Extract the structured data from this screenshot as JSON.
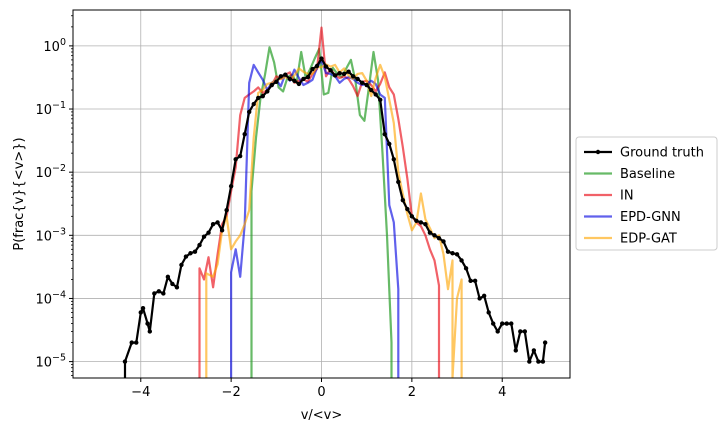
{
  "chart_data": {
    "type": "line",
    "xlabel": "v/<v>",
    "ylabel": "P(frac{v}{<v>})",
    "xlim": [
      -5.5,
      5.5
    ],
    "ylim": [
      5.5e-06,
      3.7
    ],
    "yscale": "log",
    "grid": true,
    "legend_position": "right-outside",
    "x_ticks": [
      -4,
      -2,
      0,
      2,
      4
    ],
    "x_tick_labels": [
      "−4",
      "−2",
      "0",
      "2",
      "4"
    ],
    "y_ticks": [
      1e-05,
      0.0001,
      0.001,
      0.01,
      0.1,
      1
    ],
    "y_tick_labels": [
      {
        "base": "10",
        "exp": "−5"
      },
      {
        "base": "10",
        "exp": "−4"
      },
      {
        "base": "10",
        "exp": "−3"
      },
      {
        "base": "10",
        "exp": "−2"
      },
      {
        "base": "10",
        "exp": "−1"
      },
      {
        "base": "10",
        "exp": "0"
      }
    ],
    "series": [
      {
        "name": "Ground truth",
        "color": "#000000",
        "opacity": 1,
        "markers": true,
        "x": [
          -4.35,
          -4.35,
          -4.2,
          -4.1,
          -4.0,
          -3.95,
          -3.85,
          -3.8,
          -3.7,
          -3.6,
          -3.5,
          -3.4,
          -3.3,
          -3.2,
          -3.1,
          -3.0,
          -2.9,
          -2.8,
          -2.7,
          -2.6,
          -2.5,
          -2.4,
          -2.3,
          -2.2,
          -2.1,
          -2.0,
          -1.9,
          -1.8,
          -1.7,
          -1.6,
          -1.5,
          -1.4,
          -1.3,
          -1.2,
          -1.1,
          -1.0,
          -0.9,
          -0.8,
          -0.7,
          -0.6,
          -0.5,
          -0.4,
          -0.3,
          -0.2,
          -0.1,
          0.0,
          0.1,
          0.2,
          0.3,
          0.4,
          0.5,
          0.6,
          0.7,
          0.8,
          0.9,
          1.0,
          1.1,
          1.2,
          1.3,
          1.4,
          1.5,
          1.6,
          1.7,
          1.8,
          1.9,
          2.0,
          2.1,
          2.2,
          2.3,
          2.4,
          2.5,
          2.6,
          2.7,
          2.8,
          2.9,
          3.0,
          3.1,
          3.2,
          3.3,
          3.4,
          3.5,
          3.6,
          3.7,
          3.8,
          3.9,
          4.0,
          4.1,
          4.2,
          4.3,
          4.4,
          4.5,
          4.6,
          4.7,
          4.8,
          4.9,
          4.95
        ],
        "y": [
          5e-06,
          1e-05,
          2e-05,
          2e-05,
          6e-05,
          7e-05,
          4e-05,
          3e-05,
          0.00012,
          0.00013,
          0.00012,
          0.00022,
          0.00017,
          0.00015,
          0.00034,
          0.00046,
          0.00052,
          0.00055,
          0.0007,
          0.00095,
          0.0011,
          0.0015,
          0.0016,
          0.0012,
          0.0025,
          0.006,
          0.016,
          0.018,
          0.04,
          0.09,
          0.12,
          0.15,
          0.16,
          0.19,
          0.24,
          0.27,
          0.33,
          0.35,
          0.3,
          0.28,
          0.25,
          0.3,
          0.32,
          0.43,
          0.48,
          0.63,
          0.47,
          0.41,
          0.34,
          0.37,
          0.36,
          0.39,
          0.33,
          0.3,
          0.26,
          0.24,
          0.2,
          0.17,
          0.14,
          0.04,
          0.028,
          0.016,
          0.007,
          0.0036,
          0.0026,
          0.002,
          0.0017,
          0.0016,
          0.0015,
          0.0011,
          0.001,
          0.0009,
          0.0008,
          0.00055,
          0.00052,
          0.0005,
          0.0004,
          0.0003,
          0.00019,
          0.00019,
          0.0001,
          0.00011,
          6e-05,
          4e-05,
          3e-05,
          4e-05,
          4e-05,
          4e-05,
          1.5e-05,
          3e-05,
          3e-05,
          1e-05,
          1.5e-05,
          1e-05,
          1e-05,
          2e-05
        ]
      },
      {
        "name": "Baseline",
        "color": "#2ca02c",
        "opacity": 0.72,
        "markers": false,
        "x": [
          -1.55,
          -1.55,
          -1.45,
          -1.35,
          -1.25,
          -1.15,
          -1.05,
          -0.95,
          -0.85,
          -0.75,
          -0.65,
          -0.55,
          -0.45,
          -0.35,
          -0.25,
          -0.15,
          -0.05,
          0.05,
          0.15,
          0.25,
          0.35,
          0.45,
          0.55,
          0.65,
          0.75,
          0.85,
          0.95,
          1.05,
          1.15,
          1.25,
          1.35,
          1.45,
          1.55,
          1.55
        ],
        "y": [
          5e-06,
          0.005,
          0.035,
          0.15,
          0.35,
          0.95,
          0.55,
          0.22,
          0.19,
          0.32,
          0.35,
          0.26,
          0.8,
          0.31,
          0.43,
          0.63,
          0.9,
          0.17,
          0.18,
          0.45,
          0.36,
          0.32,
          0.44,
          0.6,
          0.28,
          0.08,
          0.065,
          0.22,
          0.8,
          0.29,
          0.02,
          0.001,
          2e-05,
          5e-06
        ]
      },
      {
        "name": "IN",
        "color": "#e8000b",
        "opacity": 0.62,
        "markers": false,
        "x": [
          -2.7,
          -2.7,
          -2.6,
          -2.5,
          -2.4,
          -2.3,
          -2.2,
          -2.1,
          -2.0,
          -1.9,
          -1.8,
          -1.7,
          -1.6,
          -1.5,
          -1.4,
          -1.3,
          -1.2,
          -1.1,
          -1.0,
          -0.9,
          -0.8,
          -0.7,
          -0.6,
          -0.5,
          -0.4,
          -0.3,
          -0.2,
          -0.1,
          0.0,
          0.1,
          0.2,
          0.3,
          0.4,
          0.5,
          0.6,
          0.7,
          0.8,
          0.9,
          1.0,
          1.1,
          1.2,
          1.3,
          1.4,
          1.5,
          1.6,
          1.7,
          1.8,
          1.9,
          2.0,
          2.1,
          2.2,
          2.3,
          2.4,
          2.5,
          2.6,
          2.6
        ],
        "y": [
          5e-06,
          0.0003,
          0.0002,
          0.00045,
          0.00015,
          0.0005,
          0.0015,
          0.002,
          0.005,
          0.012,
          0.08,
          0.15,
          0.17,
          0.19,
          0.22,
          0.18,
          0.2,
          0.24,
          0.33,
          0.3,
          0.35,
          0.38,
          0.26,
          0.28,
          0.3,
          0.27,
          0.36,
          0.43,
          1.95,
          0.33,
          0.43,
          0.34,
          0.31,
          0.33,
          0.3,
          0.23,
          0.16,
          0.27,
          0.28,
          0.24,
          0.19,
          0.25,
          0.38,
          0.22,
          0.17,
          0.07,
          0.025,
          0.008,
          0.002,
          0.0016,
          0.0014,
          0.001,
          0.0006,
          0.0004,
          0.00016,
          5e-06
        ]
      },
      {
        "name": "EPD-GNN",
        "color": "#0000e0",
        "opacity": 0.62,
        "markers": false,
        "x": [
          -2.0,
          -2.0,
          -1.9,
          -1.8,
          -1.7,
          -1.6,
          -1.5,
          -1.4,
          -1.3,
          -1.2,
          -1.1,
          -1.0,
          -0.9,
          -0.8,
          -0.7,
          -0.6,
          -0.5,
          -0.4,
          -0.3,
          -0.2,
          -0.1,
          0.0,
          0.1,
          0.2,
          0.3,
          0.4,
          0.5,
          0.6,
          0.7,
          0.8,
          0.9,
          1.0,
          1.1,
          1.2,
          1.3,
          1.4,
          1.5,
          1.6,
          1.7,
          1.7
        ],
        "y": [
          5e-06,
          0.00026,
          0.0006,
          0.00022,
          0.0015,
          0.26,
          0.5,
          0.38,
          0.29,
          0.2,
          0.26,
          0.29,
          0.23,
          0.36,
          0.28,
          0.42,
          0.31,
          0.24,
          0.26,
          0.29,
          0.45,
          0.6,
          0.37,
          0.36,
          0.33,
          0.26,
          0.3,
          0.32,
          0.3,
          0.26,
          0.24,
          0.25,
          0.28,
          0.25,
          0.17,
          0.15,
          0.003,
          0.0016,
          0.00014,
          5e-06
        ]
      },
      {
        "name": "EDP-GAT",
        "color": "#ffa500",
        "opacity": 0.62,
        "markers": false,
        "x": [
          -2.55,
          -2.55,
          -2.4,
          -2.3,
          -2.2,
          -2.1,
          -2.0,
          -1.9,
          -1.8,
          -1.7,
          -1.6,
          -1.5,
          -1.4,
          -1.3,
          -1.2,
          -1.1,
          -1.0,
          -0.9,
          -0.8,
          -0.7,
          -0.6,
          -0.5,
          -0.4,
          -0.3,
          -0.2,
          -0.1,
          0.0,
          0.1,
          0.2,
          0.3,
          0.4,
          0.5,
          0.6,
          0.7,
          0.8,
          0.9,
          1.0,
          1.1,
          1.2,
          1.3,
          1.4,
          1.5,
          1.6,
          1.7,
          1.8,
          1.9,
          2.0,
          2.1,
          2.2,
          2.3,
          2.4,
          2.5,
          2.6,
          2.7,
          2.8,
          2.9,
          2.9,
          3.0,
          3.1,
          3.1
        ],
        "y": [
          5e-06,
          0.00025,
          0.00022,
          0.00035,
          0.0012,
          0.002,
          0.0006,
          0.0008,
          0.001,
          0.0015,
          0.0025,
          0.035,
          0.18,
          0.2,
          0.25,
          0.26,
          0.29,
          0.3,
          0.32,
          0.3,
          0.34,
          0.44,
          0.39,
          0.36,
          0.36,
          0.46,
          0.46,
          0.51,
          0.47,
          0.5,
          0.38,
          0.44,
          0.34,
          0.3,
          0.36,
          0.37,
          0.28,
          0.16,
          0.31,
          0.5,
          0.32,
          0.14,
          0.06,
          0.01,
          0.0045,
          0.0022,
          0.0012,
          0.0016,
          0.0046,
          0.0018,
          0.0013,
          0.0009,
          0.001,
          0.0005,
          0.00014,
          0.0004,
          5e-06,
          0.0001,
          0.0002,
          5e-06
        ]
      }
    ]
  }
}
